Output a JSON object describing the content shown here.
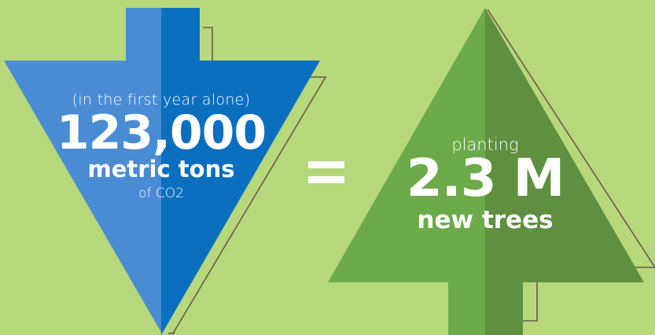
{
  "colors": {
    "background": "#b6d77a",
    "arrow_light": "#4a8cd3",
    "arrow_dark": "#0b6fc0",
    "tree_light": "#6daa4a",
    "tree_dark": "#5e9040",
    "outline": "#6b5a48",
    "text": "#ffffff"
  },
  "left": {
    "prefix": "(in the first year alone)",
    "value": "123,000",
    "unit": "metric tons",
    "suffix": "of CO2"
  },
  "equals": "=",
  "right": {
    "prefix": "planting",
    "value": "2.3 M",
    "unit": "new trees"
  }
}
